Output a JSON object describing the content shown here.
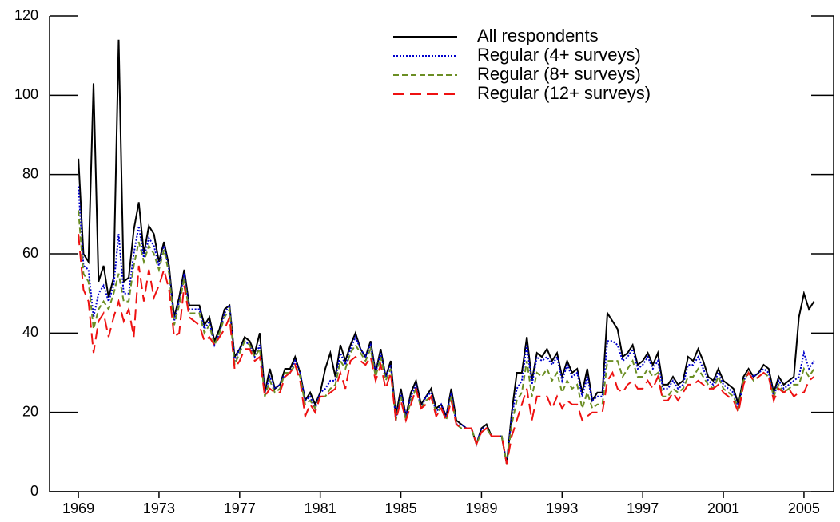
{
  "chart_data": {
    "type": "line",
    "x": [
      1969,
      1969.25,
      1969.5,
      1969.75,
      1970,
      1970.25,
      1970.5,
      1970.75,
      1971,
      1971.25,
      1971.5,
      1971.75,
      1972,
      1972.25,
      1972.5,
      1972.75,
      1973,
      1973.25,
      1973.5,
      1973.75,
      1974,
      1974.25,
      1974.5,
      1974.75,
      1975,
      1975.25,
      1975.5,
      1975.75,
      1976,
      1976.25,
      1976.5,
      1976.75,
      1977,
      1977.25,
      1977.5,
      1977.75,
      1978,
      1978.25,
      1978.5,
      1978.75,
      1979,
      1979.25,
      1979.5,
      1979.75,
      1980,
      1980.25,
      1980.5,
      1980.75,
      1981,
      1981.25,
      1981.5,
      1981.75,
      1982,
      1982.25,
      1982.5,
      1982.75,
      1983,
      1983.25,
      1983.5,
      1983.75,
      1984,
      1984.25,
      1984.5,
      1984.75,
      1985,
      1985.25,
      1985.5,
      1985.75,
      1986,
      1986.25,
      1986.5,
      1986.75,
      1987,
      1987.25,
      1987.5,
      1987.75,
      1988,
      1988.25,
      1988.5,
      1988.75,
      1989,
      1989.25,
      1989.5,
      1989.75,
      1990,
      1990.25,
      1990.5,
      1990.75,
      1991,
      1991.25,
      1991.5,
      1991.75,
      1992,
      1992.25,
      1992.5,
      1992.75,
      1993,
      1993.25,
      1993.5,
      1993.75,
      1994,
      1994.25,
      1994.5,
      1994.75,
      1995,
      1995.25,
      1995.5,
      1995.75,
      1996,
      1996.25,
      1996.5,
      1996.75,
      1997,
      1997.25,
      1997.5,
      1997.75,
      1998,
      1998.25,
      1998.5,
      1998.75,
      1999,
      1999.25,
      1999.5,
      1999.75,
      2000,
      2000.25,
      2000.5,
      2000.75,
      2001,
      2001.25,
      2001.5,
      2001.75,
      2002,
      2002.25,
      2002.5,
      2002.75,
      2003,
      2003.25,
      2003.5,
      2003.75,
      2004,
      2004.25,
      2004.5,
      2004.75,
      2005,
      2005.25,
      2005.5
    ],
    "series": [
      {
        "name": "All respondents",
        "color": "#000000",
        "dash": "solid",
        "values": [
          84,
          60,
          58,
          103,
          53,
          57,
          49,
          54,
          114,
          53,
          54,
          66,
          73,
          60,
          67,
          65,
          58,
          63,
          57,
          44,
          49,
          56,
          47,
          47,
          47,
          42,
          44,
          38,
          41,
          46,
          47,
          34,
          36,
          39,
          38,
          35,
          40,
          25,
          31,
          26,
          27,
          31,
          31,
          34,
          30,
          23,
          25,
          22,
          25,
          31,
          35,
          29,
          37,
          33,
          37,
          40,
          36,
          34,
          38,
          30,
          36,
          29,
          33,
          19,
          26,
          19,
          25,
          28,
          22,
          24,
          26,
          21,
          22,
          19,
          26,
          18,
          17,
          16,
          16,
          12,
          16,
          17,
          14,
          14,
          14,
          7,
          20,
          30,
          30,
          39,
          28,
          35,
          34,
          36,
          33,
          35,
          29,
          33,
          30,
          31,
          25,
          31,
          23,
          25,
          25,
          45,
          43,
          41,
          34,
          35,
          37,
          32,
          33,
          35,
          32,
          35,
          27,
          27,
          29,
          27,
          28,
          34,
          33,
          36,
          33,
          29,
          28,
          31,
          28,
          27,
          26,
          22,
          29,
          31,
          29,
          30,
          32,
          31,
          25,
          29,
          27,
          28,
          29,
          44,
          50,
          46,
          48
        ]
      },
      {
        "name": "Regular (4+ surveys)",
        "color": "#0000cc",
        "dash": "dotted",
        "values": [
          77,
          57,
          56,
          44,
          50,
          52,
          48,
          52,
          65,
          50,
          50,
          60,
          67,
          59,
          64,
          62,
          57,
          62,
          56,
          43,
          48,
          55,
          46,
          46,
          46,
          41,
          43,
          37,
          40,
          45,
          47,
          33,
          36,
          38,
          37,
          34,
          37,
          25,
          29,
          26,
          27,
          30,
          30,
          33,
          30,
          23,
          24,
          21,
          25,
          26,
          28,
          28,
          35,
          32,
          36,
          39,
          36,
          34,
          37,
          30,
          35,
          29,
          32,
          18,
          25,
          19,
          24,
          27,
          21,
          24,
          25,
          20,
          22,
          19,
          25,
          17,
          17,
          16,
          16,
          12,
          16,
          16,
          14,
          14,
          14,
          7,
          19,
          26,
          28,
          37,
          27,
          34,
          33,
          34,
          32,
          34,
          28,
          32,
          29,
          30,
          24,
          29,
          23,
          24,
          24,
          38,
          38,
          37,
          33,
          34,
          36,
          31,
          32,
          34,
          31,
          33,
          26,
          26,
          28,
          26,
          27,
          32,
          32,
          34,
          31,
          28,
          27,
          30,
          27,
          26,
          25,
          21,
          28,
          30,
          29,
          30,
          31,
          30,
          24,
          28,
          26,
          27,
          28,
          29,
          35,
          31,
          33
        ]
      },
      {
        "name": "Regular (8+ surveys)",
        "color": "#6b8e23",
        "dash": "dashed",
        "values": [
          71,
          55,
          53,
          41,
          46,
          48,
          46,
          50,
          55,
          48,
          48,
          57,
          63,
          58,
          62,
          60,
          56,
          61,
          55,
          42,
          47,
          54,
          45,
          45,
          45,
          40,
          42,
          37,
          40,
          44,
          46,
          32,
          35,
          38,
          37,
          34,
          36,
          24,
          28,
          25,
          26,
          30,
          30,
          32,
          29,
          22,
          23,
          21,
          24,
          24,
          26,
          27,
          33,
          31,
          35,
          37,
          35,
          33,
          36,
          29,
          34,
          28,
          31,
          18,
          24,
          18,
          23,
          26,
          21,
          23,
          24,
          20,
          21,
          18,
          24,
          17,
          16,
          16,
          16,
          12,
          15,
          16,
          14,
          14,
          14,
          7,
          17,
          23,
          25,
          33,
          24,
          30,
          29,
          31,
          28,
          30,
          25,
          28,
          26,
          27,
          21,
          25,
          21,
          22,
          22,
          33,
          33,
          33,
          29,
          31,
          33,
          29,
          29,
          31,
          29,
          30,
          24,
          24,
          26,
          25,
          26,
          29,
          29,
          31,
          29,
          27,
          26,
          29,
          26,
          25,
          24,
          21,
          28,
          30,
          28,
          29,
          30,
          29,
          24,
          27,
          25,
          26,
          27,
          27,
          31,
          29,
          31
        ]
      },
      {
        "name": "Regular (12+ surveys)",
        "color": "#ee1111",
        "dash": "longdash",
        "values": [
          65,
          51,
          48,
          35,
          43,
          45,
          39,
          44,
          48,
          43,
          46,
          39,
          57,
          48,
          56,
          49,
          52,
          56,
          51,
          39,
          40,
          52,
          44,
          43,
          42,
          38,
          39,
          37,
          39,
          41,
          44,
          31,
          33,
          36,
          36,
          33,
          34,
          24,
          26,
          25,
          25,
          29,
          30,
          32,
          28,
          19,
          22,
          20,
          24,
          24,
          25,
          26,
          30,
          26,
          33,
          34,
          33,
          32,
          34,
          28,
          32,
          26,
          30,
          18,
          23,
          18,
          22,
          26,
          21,
          22,
          24,
          19,
          21,
          18,
          23,
          17,
          16,
          16,
          16,
          12,
          15,
          16,
          14,
          14,
          14,
          7,
          14,
          18,
          22,
          26,
          18,
          24,
          24,
          24,
          21,
          24,
          21,
          23,
          22,
          22,
          18,
          19,
          20,
          20,
          20,
          28,
          30,
          26,
          25,
          27,
          28,
          26,
          26,
          28,
          26,
          29,
          23,
          23,
          25,
          23,
          25,
          27,
          27,
          28,
          27,
          26,
          26,
          27,
          25,
          24,
          23,
          20,
          27,
          30,
          28,
          29,
          30,
          29,
          23,
          26,
          25,
          26,
          24,
          25,
          25,
          28,
          29
        ]
      }
    ],
    "xlim": [
      1967.57,
      2006.47
    ],
    "xticks": [
      1969,
      1973,
      1977,
      1981,
      1985,
      1989,
      1993,
      1997,
      2001,
      2005
    ],
    "ylim": [
      0,
      120
    ],
    "yticks": [
      0,
      20,
      40,
      60,
      80,
      100,
      120
    ],
    "grid": false,
    "legend": "upper center"
  }
}
